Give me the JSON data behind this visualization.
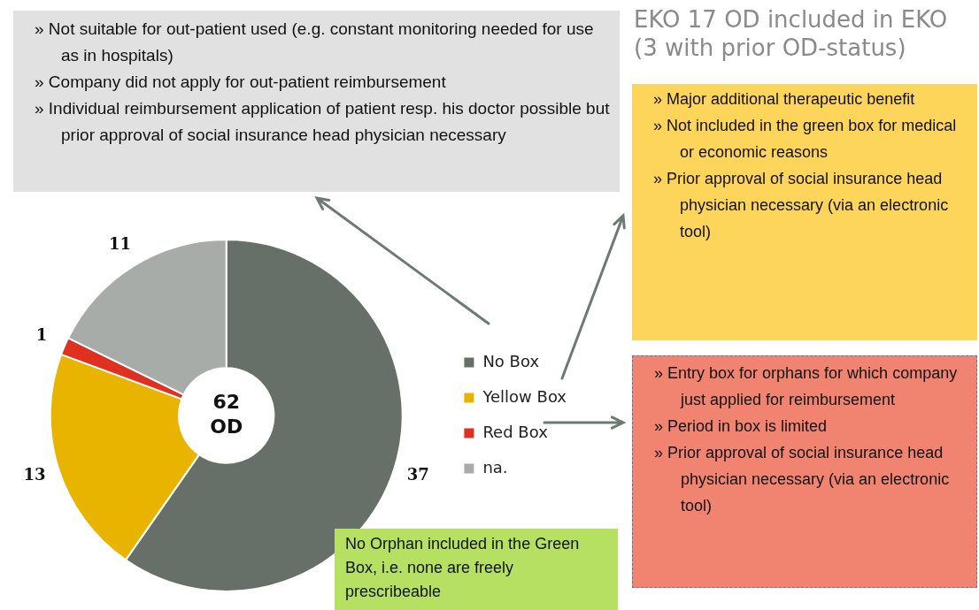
{
  "chart_data": {
    "type": "donut",
    "title": "EKO 17 OD included in EKO (3 with prior OD-status)",
    "categories": [
      "No Box",
      "Yellow Box",
      "Red Box",
      "na."
    ],
    "values": [
      37,
      13,
      1,
      11
    ],
    "colors": [
      "#667068",
      "#e8b400",
      "#e03020",
      "#a8aca8"
    ],
    "data_labels": true,
    "legend": "right",
    "annotations": [
      "62 OD",
      "» Not suitable for out-patient used (e.g. constant monitoring needed for use as in hospitals)",
      "» Company did not apply for out-patient reimbursement",
      "» Individual reimbursement application of patient resp. his doctor possible but prior approval of social insurance head physician necessary",
      "» Major additional therapeutic benefit",
      "» Not included in the green box for medical or economic reasons",
      "» Prior approval of social insurance head physician necessary (via an electronic tool)",
      "» Entry box for orphans  for which company just applied for reimbursement",
      "» Period in box  is limited",
      "» Prior approval of social insurance head physician necessary (via an electronic tool)",
      "No Orphan included in the Green Box, i.e. none are freely prescribeable"
    ]
  }
}
